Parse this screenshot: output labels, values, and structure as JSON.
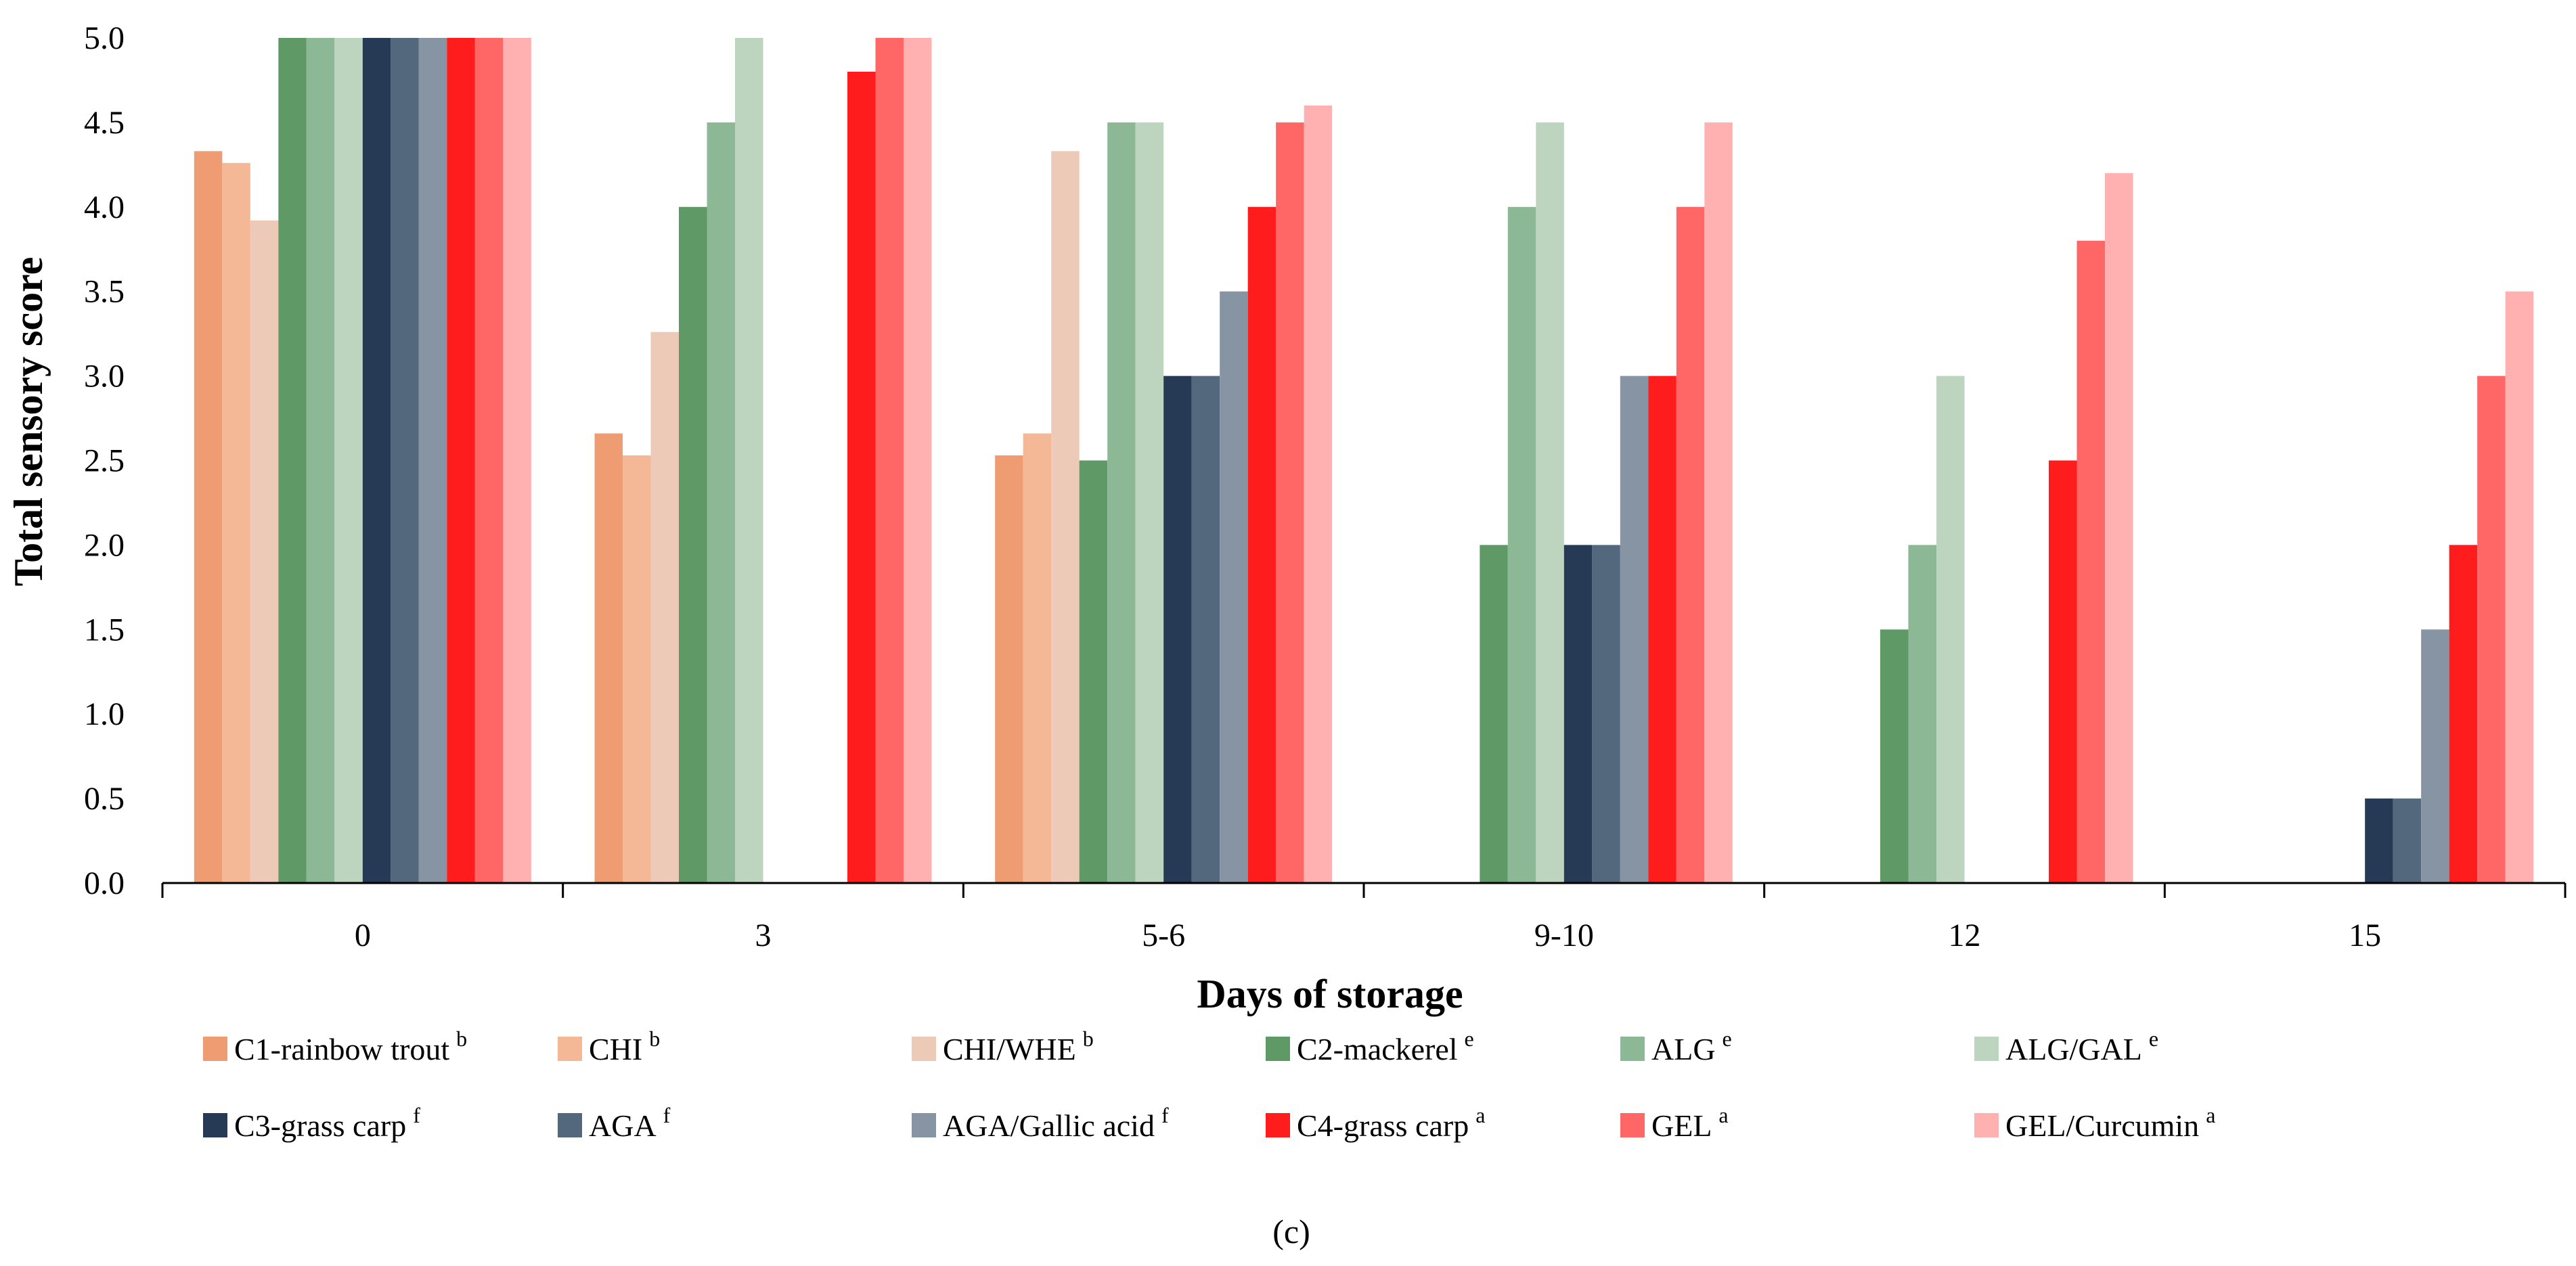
{
  "chart_data": {
    "type": "bar",
    "title": "",
    "xlabel": "Days of storage",
    "ylabel": "Total sensory score",
    "ylim": [
      0,
      5
    ],
    "yticks": [
      "0.0",
      "0.5",
      "1.0",
      "1.5",
      "2.0",
      "2.5",
      "3.0",
      "3.5",
      "4.0",
      "4.5",
      "5.0"
    ],
    "categories": [
      "0",
      "3",
      "5-6",
      "9-10",
      "12",
      "15"
    ],
    "legend_position": "bottom",
    "panel_label": "(c)",
    "series": [
      {
        "name": "C1-rainbow trout",
        "sup": "b",
        "color": "#F09C73",
        "values": [
          4.33,
          2.66,
          2.53,
          null,
          null,
          null
        ]
      },
      {
        "name": "CHI",
        "sup": "b",
        "color": "#F5B897",
        "values": [
          4.26,
          2.53,
          2.66,
          null,
          null,
          null
        ]
      },
      {
        "name": "CHI/WHE",
        "sup": "b",
        "color": "#EDC9B7",
        "values": [
          3.92,
          3.26,
          4.33,
          null,
          null,
          null
        ]
      },
      {
        "name": "C2-mackerel",
        "sup": "e",
        "color": "#5E9966",
        "values": [
          5.0,
          4.0,
          2.5,
          2.0,
          1.5,
          null
        ]
      },
      {
        "name": "ALG",
        "sup": "e",
        "color": "#8DB895",
        "values": [
          5.0,
          4.5,
          4.5,
          4.0,
          2.0,
          null
        ]
      },
      {
        "name": "ALG/GAL",
        "sup": "e",
        "color": "#BDD4BF",
        "values": [
          5.0,
          5.0,
          4.5,
          4.5,
          3.0,
          null
        ]
      },
      {
        "name": "C3-grass carp",
        "sup": "f",
        "color": "#263A55",
        "values": [
          5.0,
          null,
          3.0,
          2.0,
          null,
          0.5
        ]
      },
      {
        "name": "AGA",
        "sup": "f",
        "color": "#53677D",
        "values": [
          5.0,
          null,
          3.0,
          2.0,
          null,
          0.5
        ]
      },
      {
        "name": "AGA/Gallic acid",
        "sup": "f",
        "color": "#8694A3",
        "values": [
          5.0,
          null,
          3.5,
          3.0,
          null,
          1.5
        ]
      },
      {
        "name": "C4-grass carp",
        "sup": "a",
        "color": "#FF1C1C",
        "values": [
          5.0,
          4.8,
          4.0,
          3.0,
          2.5,
          2.0
        ]
      },
      {
        "name": "GEL",
        "sup": "a",
        "color": "#FF6666",
        "values": [
          5.0,
          5.0,
          4.5,
          4.0,
          3.8,
          3.0
        ]
      },
      {
        "name": "GEL/Curcumin",
        "sup": "a",
        "color": "#FFB0B0",
        "values": [
          5.0,
          5.0,
          4.6,
          4.5,
          4.2,
          3.5
        ]
      }
    ]
  }
}
